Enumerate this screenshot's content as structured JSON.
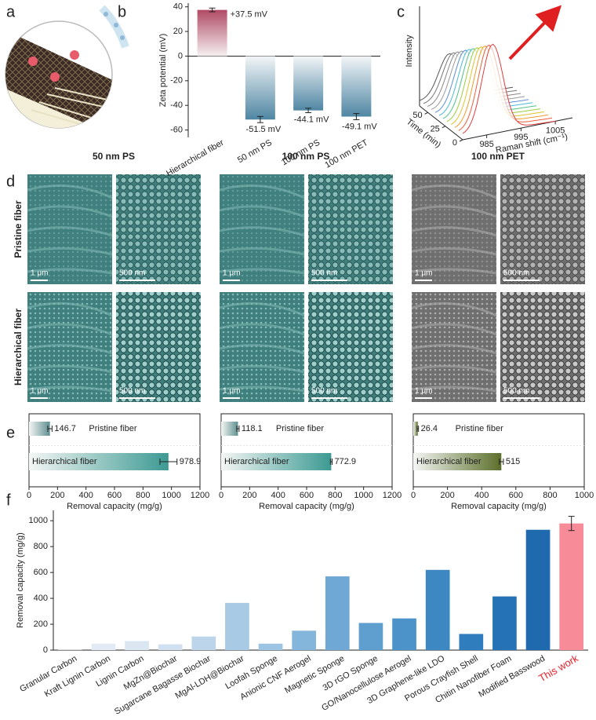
{
  "panel_labels": [
    "a",
    "b",
    "c",
    "d",
    "e",
    "f"
  ],
  "sem": {
    "columns": [
      "50 nm PS",
      "100 nm PS",
      "100 nm PET"
    ],
    "rows": [
      "Pristine fiber",
      "Hierarchical fiber"
    ],
    "scale_bars": [
      "1 μm",
      "500 nm"
    ]
  },
  "chart_data": [
    {
      "type": "bar",
      "ylabel": "Zeta potential (mV)",
      "categories": [
        "Hierarchical fiber",
        "50 nm PS",
        "100 nm PS",
        "100 nm PET"
      ],
      "values": [
        37.5,
        -51.5,
        -44.1,
        -49.1
      ],
      "errors": [
        1.5,
        2.5,
        1.8,
        2.5
      ],
      "value_labels": [
        "+37.5 mV",
        "-51.5 mV",
        "-44.1 mV",
        "-49.1 mV"
      ],
      "colors": [
        "#b04a64",
        "#4f86a3",
        "#4f86a3",
        "#4f86a3"
      ],
      "gradient": true,
      "ylim": [
        -66,
        43
      ],
      "yticks": [
        -60,
        -40,
        -20,
        0,
        20,
        40
      ]
    },
    {
      "type": "waterfall",
      "ylabel": "Intensity",
      "xlabel": "Raman shift (cm⁻¹)",
      "zlabel": "Time (min)",
      "xlim": [
        978,
        1010
      ],
      "xticks": [
        985,
        995,
        1005
      ],
      "zlim": [
        0,
        62
      ],
      "zticks": [
        0,
        25,
        50
      ]
    },
    {
      "type": "hbar",
      "xlabel": "Removal capacity (mg/g)",
      "categories": [
        "Pristine fiber",
        "Hierarchical fiber"
      ],
      "values": [
        146.7,
        978.9
      ],
      "errors": [
        15,
        60
      ],
      "colors": [
        "#5f8f90",
        "#3c9a93"
      ],
      "xlim": [
        0,
        1200
      ],
      "xticks": [
        0,
        200,
        400,
        600,
        800,
        1000,
        1200
      ]
    },
    {
      "type": "hbar",
      "xlabel": "Removal capacity (mg/g)",
      "categories": [
        "Pristine fiber",
        "Hierarchical fiber"
      ],
      "values": [
        118.1,
        772.9
      ],
      "errors": [
        8,
        6
      ],
      "colors": [
        "#5f8f90",
        "#3c9a93"
      ],
      "xlim": [
        0,
        1200
      ],
      "xticks": [
        0,
        200,
        400,
        600,
        800,
        1000,
        1200
      ]
    },
    {
      "type": "hbar",
      "xlabel": "Removal capacity (mg/g)",
      "categories": [
        "Pristine fiber",
        "Hierarchical fiber"
      ],
      "values": [
        26.4,
        515
      ],
      "errors": [
        4,
        12
      ],
      "colors": [
        "#5b6f2a",
        "#5b6f2a"
      ],
      "xlim": [
        0,
        1000
      ],
      "xticks": [
        0,
        200,
        400,
        600,
        800,
        1000
      ]
    },
    {
      "type": "bar",
      "ylabel": "Removal capacity (mg/g)",
      "categories": [
        "Granular  Carbon",
        "Kraft Lignin  Carbon",
        "Lignin  Carbon",
        "MgZn@Biochar",
        "Sugarcane Bagasse Biochar",
        "MgAl-LDH@Biochar",
        "Loofah Sponge",
        "Anionic CNF Aerogel",
        "Magnetic Sponge",
        "3D rGO Sponge",
        "GO/Nanocellulose Aerogel",
        "3D Graphene-like LDO",
        "Porous Crayfish Shell",
        "Chitin Nanofiber Foam",
        "Modified Basswood",
        "This work"
      ],
      "values": [
        2,
        50,
        70,
        45,
        105,
        365,
        50,
        150,
        570,
        210,
        245,
        620,
        125,
        415,
        930,
        978.9
      ],
      "errors": [
        null,
        null,
        null,
        null,
        null,
        null,
        null,
        null,
        null,
        null,
        null,
        null,
        null,
        null,
        null,
        55
      ],
      "colors": [
        "#eef3f9",
        "#e2ebf5",
        "#dbe6f3",
        "#d0e0f0",
        "#bcd5ea",
        "#a8cae5",
        "#9dc4e2",
        "#84b5da",
        "#6fa8d5",
        "#5f9fd0",
        "#4c93c9",
        "#3d88c3",
        "#2f7dbc",
        "#2573b6",
        "#1f69af",
        "#f88b98"
      ],
      "tick_label_colors": [
        "#222",
        "#222",
        "#222",
        "#222",
        "#222",
        "#222",
        "#222",
        "#222",
        "#222",
        "#222",
        "#222",
        "#222",
        "#222",
        "#222",
        "#222",
        "#e8202a"
      ],
      "ylim": [
        0,
        1080
      ],
      "yticks": [
        0,
        200,
        400,
        600,
        800,
        1000
      ]
    }
  ]
}
